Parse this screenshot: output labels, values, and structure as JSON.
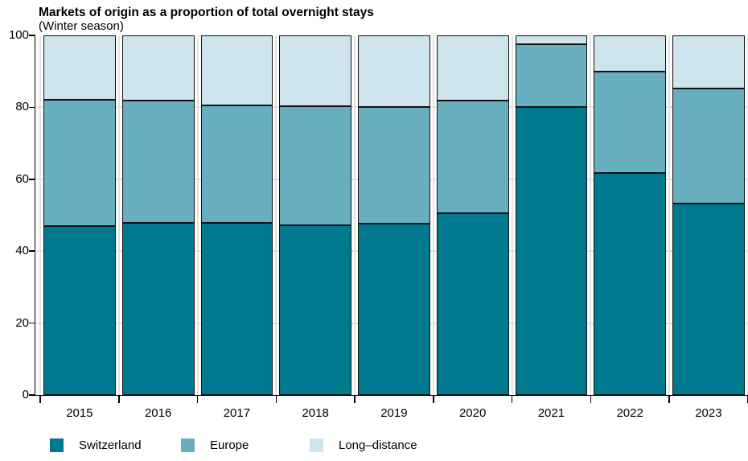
{
  "title": "Markets of origin as a proportion of total overnight stays",
  "subtitle": "(Winter season)",
  "chart_data": {
    "type": "bar",
    "stacked": true,
    "title": "Markets of origin as a proportion of total overnight stays",
    "subtitle": "(Winter season)",
    "categories": [
      "2015",
      "2016",
      "2017",
      "2018",
      "2019",
      "2020",
      "2021",
      "2022",
      "2023"
    ],
    "series": [
      {
        "name": "Switzerland",
        "color": "#00798f",
        "values": [
          46.9,
          47.9,
          47.9,
          47.3,
          47.6,
          50.6,
          80.1,
          61.8,
          53.2
        ]
      },
      {
        "name": "Europe",
        "color": "#67aebf",
        "values": [
          35.1,
          33.9,
          32.7,
          33.1,
          32.5,
          31.2,
          17.5,
          28.2,
          32.0
        ]
      },
      {
        "name": "Long–distance",
        "color": "#cde4ec",
        "values": [
          18.0,
          18.2,
          19.4,
          19.6,
          19.9,
          18.2,
          2.4,
          10.0,
          14.8
        ]
      }
    ],
    "xlabel": "",
    "ylabel": "",
    "ylim": [
      0,
      100
    ],
    "yticks": [
      0,
      20,
      40,
      60,
      80,
      100
    ],
    "grid": true,
    "legend_position": "bottom"
  },
  "colors": {
    "switzerland": "#00798f",
    "europe": "#67aebf",
    "long_distance": "#cde4ec",
    "bar_border": "#111111",
    "gridline": "#e2e2e2",
    "axis": "#000000"
  }
}
